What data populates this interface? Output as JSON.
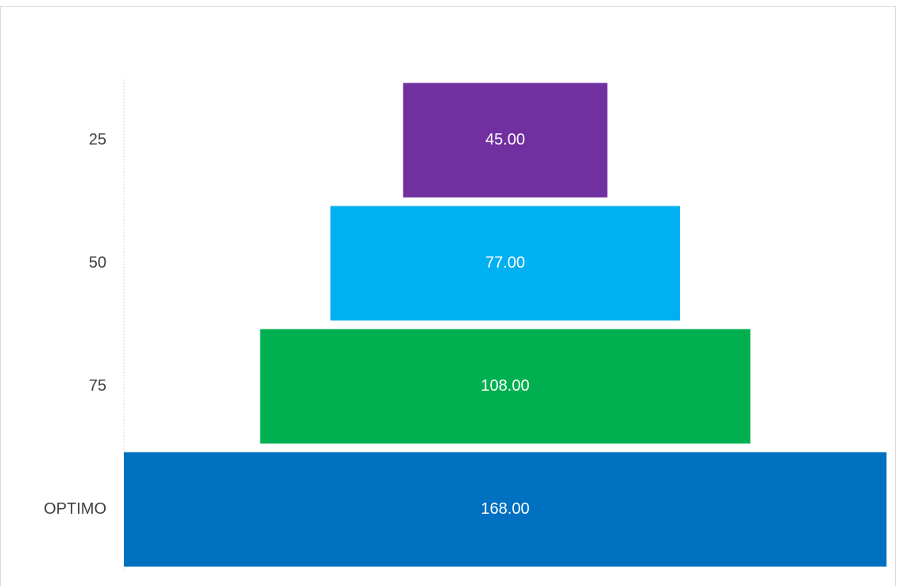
{
  "chart_data": {
    "type": "funnel",
    "categories": [
      "25",
      "50",
      "75",
      "OPTIMO"
    ],
    "values": [
      45,
      77,
      108,
      168
    ],
    "value_labels": [
      "45.00",
      "77.00",
      "108.00",
      "168.00"
    ],
    "colors": [
      "#7030a0",
      "#00b0f0",
      "#00b050",
      "#0070c0"
    ]
  }
}
